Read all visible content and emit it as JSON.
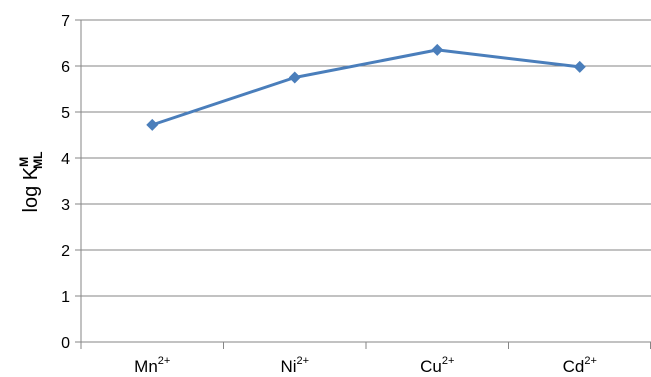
{
  "chart_data": {
    "type": "line",
    "categories": [
      {
        "base": "Mn",
        "sup": "2+"
      },
      {
        "base": "Ni",
        "sup": "2+"
      },
      {
        "base": "Cu",
        "sup": "2+"
      },
      {
        "base": "Cd",
        "sup": "2+"
      }
    ],
    "series": [
      {
        "values": [
          4.72,
          5.75,
          6.35,
          5.98
        ]
      }
    ],
    "ylabel": {
      "main": "log K",
      "sup": "M",
      "sub": "ML"
    },
    "ylim": [
      0,
      7
    ],
    "yticks": [
      0,
      1,
      2,
      3,
      4,
      5,
      6,
      7
    ],
    "grid": true,
    "colors": {
      "line": "#4a7ebb",
      "grid": "#868686",
      "axis": "#868686"
    }
  }
}
